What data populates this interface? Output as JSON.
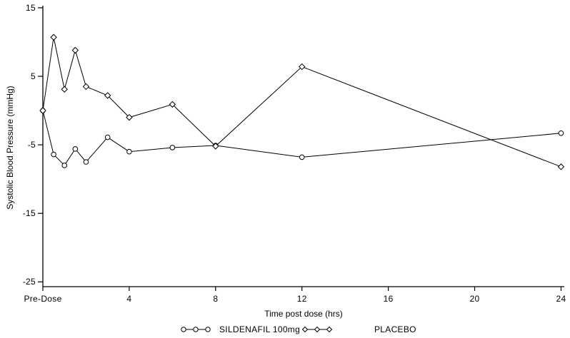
{
  "chart_data": {
    "type": "line",
    "title": "",
    "xlabel": "Time post dose (hrs)",
    "ylabel": "Systolic Blood Pressure (mmHg)",
    "x": [
      0,
      0.5,
      1,
      1.5,
      2,
      3,
      4,
      6,
      8,
      12,
      24
    ],
    "x_tick_values": [
      0,
      4,
      8,
      12,
      16,
      20,
      24
    ],
    "x_tick_labels": [
      "Pre-Dose",
      "4",
      "8",
      "12",
      "16",
      "20",
      "24"
    ],
    "y_tick_values": [
      15,
      5,
      -5,
      -15,
      -25
    ],
    "y_tick_labels": [
      "15",
      "5",
      "-5",
      "-15",
      "-25"
    ],
    "xlim": [
      0,
      24.15
    ],
    "ylim": [
      -25.7,
      15.2
    ],
    "grid": false,
    "legend_position": "bottom",
    "axis_color": "#000000",
    "background": "#ffffff",
    "series": [
      {
        "name": "SILDENAFIL 100mg",
        "marker": "circle",
        "color": "#000000",
        "values": [
          0,
          -6.4,
          -8.0,
          -5.6,
          -7.5,
          -3.9,
          -6.0,
          -5.4,
          -5.1,
          -6.8,
          -3.3
        ]
      },
      {
        "name": "PLACEBO",
        "marker": "diamond",
        "color": "#000000",
        "values": [
          0,
          10.7,
          3.1,
          8.8,
          3.5,
          2.2,
          -1.0,
          0.9,
          -5.2,
          6.4,
          -8.2
        ]
      }
    ]
  }
}
